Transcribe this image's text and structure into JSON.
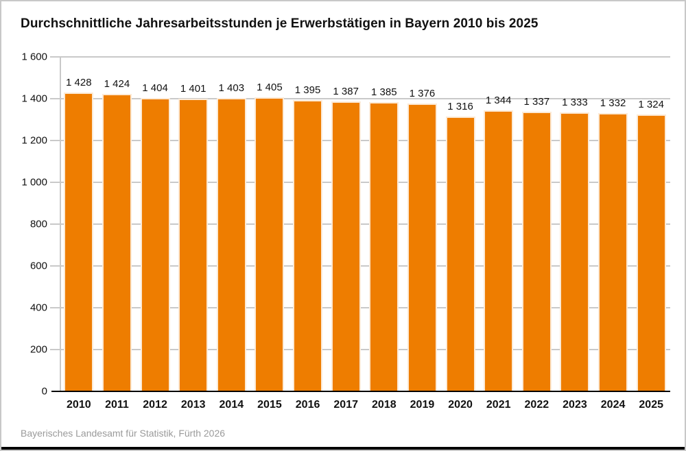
{
  "title": "Durchschnittliche Jahresarbeitsstunden je Erwerbstätigen in Bayern 2010 bis 2025",
  "source": "Bayerisches Landesamt für Statistik, Fürth 2026",
  "colors": {
    "bar_fill": "#ee7d00",
    "bar_outline": "#fcead6",
    "grid": "#c9c9c9",
    "baseline": "#000000",
    "text": "#111111",
    "source_text": "#9a9a9a",
    "frame_border": "#c8c8c8",
    "bottom_strip": "#000000"
  },
  "chart_data": {
    "type": "bar",
    "title": "Durchschnittliche Jahresarbeitsstunden je Erwerbstätigen in Bayern 2010 bis 2025",
    "xlabel": "",
    "ylabel": "",
    "categories": [
      "2010",
      "2011",
      "2012",
      "2013",
      "2014",
      "2015",
      "2016",
      "2017",
      "2018",
      "2019",
      "2020",
      "2021",
      "2022",
      "2023",
      "2024",
      "2025"
    ],
    "values": [
      1428,
      1424,
      1404,
      1401,
      1403,
      1405,
      1395,
      1387,
      1385,
      1376,
      1316,
      1344,
      1337,
      1333,
      1332,
      1324
    ],
    "value_labels": [
      "1 428",
      "1 424",
      "1 404",
      "1 401",
      "1 403",
      "1 405",
      "1 395",
      "1 387",
      "1 385",
      "1 376",
      "1 316",
      "1 344",
      "1 337",
      "1 333",
      "1 332",
      "1 324"
    ],
    "ylim": [
      0,
      1600
    ],
    "ytick_values": [
      0,
      200,
      400,
      600,
      800,
      1000,
      1200,
      1400,
      1600
    ],
    "ytick_labels": [
      "0",
      "200",
      "400",
      "600",
      "800",
      "1 000",
      "1 200",
      "1 400",
      "1 600"
    ],
    "grid": "horizontal",
    "legend_position": "none"
  }
}
